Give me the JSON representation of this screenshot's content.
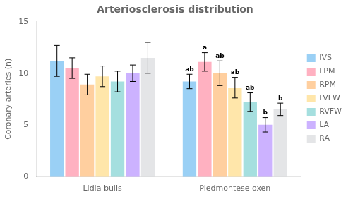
{
  "chart_data": {
    "type": "bar",
    "title": "Arteriosclerosis distribution",
    "ylabel": "Coronary arteries (n)",
    "categories": [
      "Lidia bulls",
      "Piedmontese oxen"
    ],
    "series": [
      {
        "name": "IVS",
        "values": [
          11.2,
          9.2
        ],
        "errors": [
          1.5,
          0.7
        ],
        "annotations": [
          null,
          "ab"
        ]
      },
      {
        "name": "LPM",
        "values": [
          10.5,
          11.1
        ],
        "errors": [
          1.0,
          0.9
        ],
        "annotations": [
          null,
          "a"
        ]
      },
      {
        "name": "RPM",
        "values": [
          8.9,
          10.0
        ],
        "errors": [
          1.0,
          1.2
        ],
        "annotations": [
          null,
          "ab"
        ]
      },
      {
        "name": "LVFW",
        "values": [
          9.7,
          8.6
        ],
        "errors": [
          1.0,
          1.0
        ],
        "annotations": [
          null,
          "ab"
        ]
      },
      {
        "name": "RVFW",
        "values": [
          9.2,
          7.2
        ],
        "errors": [
          1.0,
          0.9
        ],
        "annotations": [
          null,
          "ab"
        ]
      },
      {
        "name": "LA",
        "values": [
          10.0,
          5.0
        ],
        "errors": [
          0.8,
          0.7
        ],
        "annotations": [
          null,
          "b"
        ]
      },
      {
        "name": "RA",
        "values": [
          11.5,
          6.5
        ],
        "errors": [
          1.5,
          0.6
        ],
        "annotations": [
          null,
          "b"
        ]
      }
    ],
    "ylim": [
      0,
      15
    ],
    "yticks": [
      0,
      5,
      10,
      15
    ],
    "grid": false,
    "legend": "right"
  }
}
